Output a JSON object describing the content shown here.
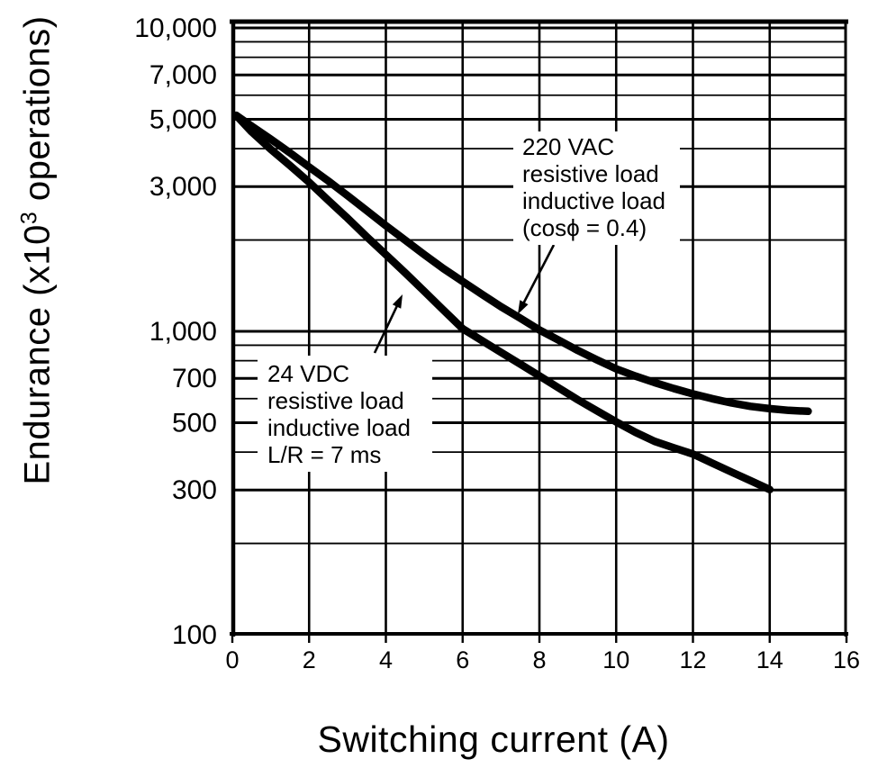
{
  "figure": {
    "background_color": "#ffffff",
    "ink_color": "#000000"
  },
  "chart_data": {
    "type": "line",
    "title": "",
    "xlabel": "Switching current (A)",
    "ylabel": "Endurance (x10³ operations)",
    "ylabel_parts": {
      "prefix": "Endurance (x10",
      "sup": "3",
      "suffix": " operations)"
    },
    "grid": true,
    "legend_position": "none",
    "x_axis": {
      "scale": "linear",
      "min": 0,
      "max": 16,
      "ticks": [
        0,
        2,
        4,
        6,
        8,
        10,
        12,
        14,
        16
      ],
      "tick_labels": [
        "0",
        "2",
        "4",
        "6",
        "8",
        "10",
        "12",
        "14",
        "16"
      ]
    },
    "y_axis": {
      "scale": "log",
      "min": 100,
      "max": 10000,
      "unit": "x10^3 operations",
      "labeled_ticks": [
        {
          "value": 10000,
          "label": "10,000"
        },
        {
          "value": 7000,
          "label": "7,000"
        },
        {
          "value": 5000,
          "label": "5,000"
        },
        {
          "value": 3000,
          "label": "3,000"
        },
        {
          "value": 1000,
          "label": "1,000"
        },
        {
          "value": 700,
          "label": "700"
        },
        {
          "value": 500,
          "label": "500"
        },
        {
          "value": 300,
          "label": "300"
        },
        {
          "value": 100,
          "label": "100"
        }
      ],
      "minor_gridlines": [
        9000,
        8000,
        6000,
        4000,
        2000,
        900,
        800,
        600,
        400,
        200
      ]
    },
    "series": [
      {
        "name": "220 VAC resistive load / inductive load (cosϕ = 0.4)",
        "points": [
          [
            0.1,
            5150
          ],
          [
            0.5,
            4750
          ],
          [
            1,
            4300
          ],
          [
            1.5,
            3880
          ],
          [
            2,
            3480
          ],
          [
            2.5,
            3130
          ],
          [
            3,
            2800
          ],
          [
            3.5,
            2500
          ],
          [
            4,
            2230
          ],
          [
            4.5,
            2000
          ],
          [
            5,
            1790
          ],
          [
            5.5,
            1610
          ],
          [
            6,
            1460
          ],
          [
            6.5,
            1325
          ],
          [
            7,
            1205
          ],
          [
            7.5,
            1105
          ],
          [
            8,
            1010
          ],
          [
            8.5,
            935
          ],
          [
            9,
            865
          ],
          [
            9.5,
            805
          ],
          [
            10,
            752
          ],
          [
            10.5,
            712
          ],
          [
            11,
            678
          ],
          [
            11.5,
            648
          ],
          [
            12,
            622
          ],
          [
            12.5,
            600
          ],
          [
            13,
            581
          ],
          [
            13.5,
            566
          ],
          [
            14,
            556
          ],
          [
            14.5,
            549
          ],
          [
            15,
            545
          ]
        ]
      },
      {
        "name": "24 VDC resistive load / inductive load (L/R = 7 ms)",
        "points": [
          [
            0.1,
            5150
          ],
          [
            0.5,
            4550
          ],
          [
            1,
            3980
          ],
          [
            1.5,
            3520
          ],
          [
            2,
            3100
          ],
          [
            2.5,
            2700
          ],
          [
            3,
            2360
          ],
          [
            3.5,
            2050
          ],
          [
            4,
            1790
          ],
          [
            4.5,
            1560
          ],
          [
            5,
            1355
          ],
          [
            5.5,
            1175
          ],
          [
            6,
            1020
          ],
          [
            6.5,
            932
          ],
          [
            7,
            852
          ],
          [
            7.5,
            780
          ],
          [
            8,
            713
          ],
          [
            8.5,
            651
          ],
          [
            9,
            595
          ],
          [
            9.5,
            547
          ],
          [
            10,
            503
          ],
          [
            10.5,
            465
          ],
          [
            11,
            434
          ],
          [
            11.5,
            413
          ],
          [
            12,
            394
          ],
          [
            12.5,
            368
          ],
          [
            13,
            344
          ],
          [
            13.5,
            322
          ],
          [
            14,
            301
          ]
        ]
      }
    ],
    "annotations": [
      {
        "id": "annotation-220vac",
        "lines": [
          "220 VAC",
          "resistive load",
          "inductive load",
          "(cosϕ = 0.4)"
        ],
        "points_to": "220 VAC curve"
      },
      {
        "id": "annotation-24vdc",
        "lines": [
          "24 VDC",
          "resistive load",
          "inductive load",
          "L/R = 7 ms"
        ],
        "points_to": "24 VDC curve"
      }
    ]
  }
}
